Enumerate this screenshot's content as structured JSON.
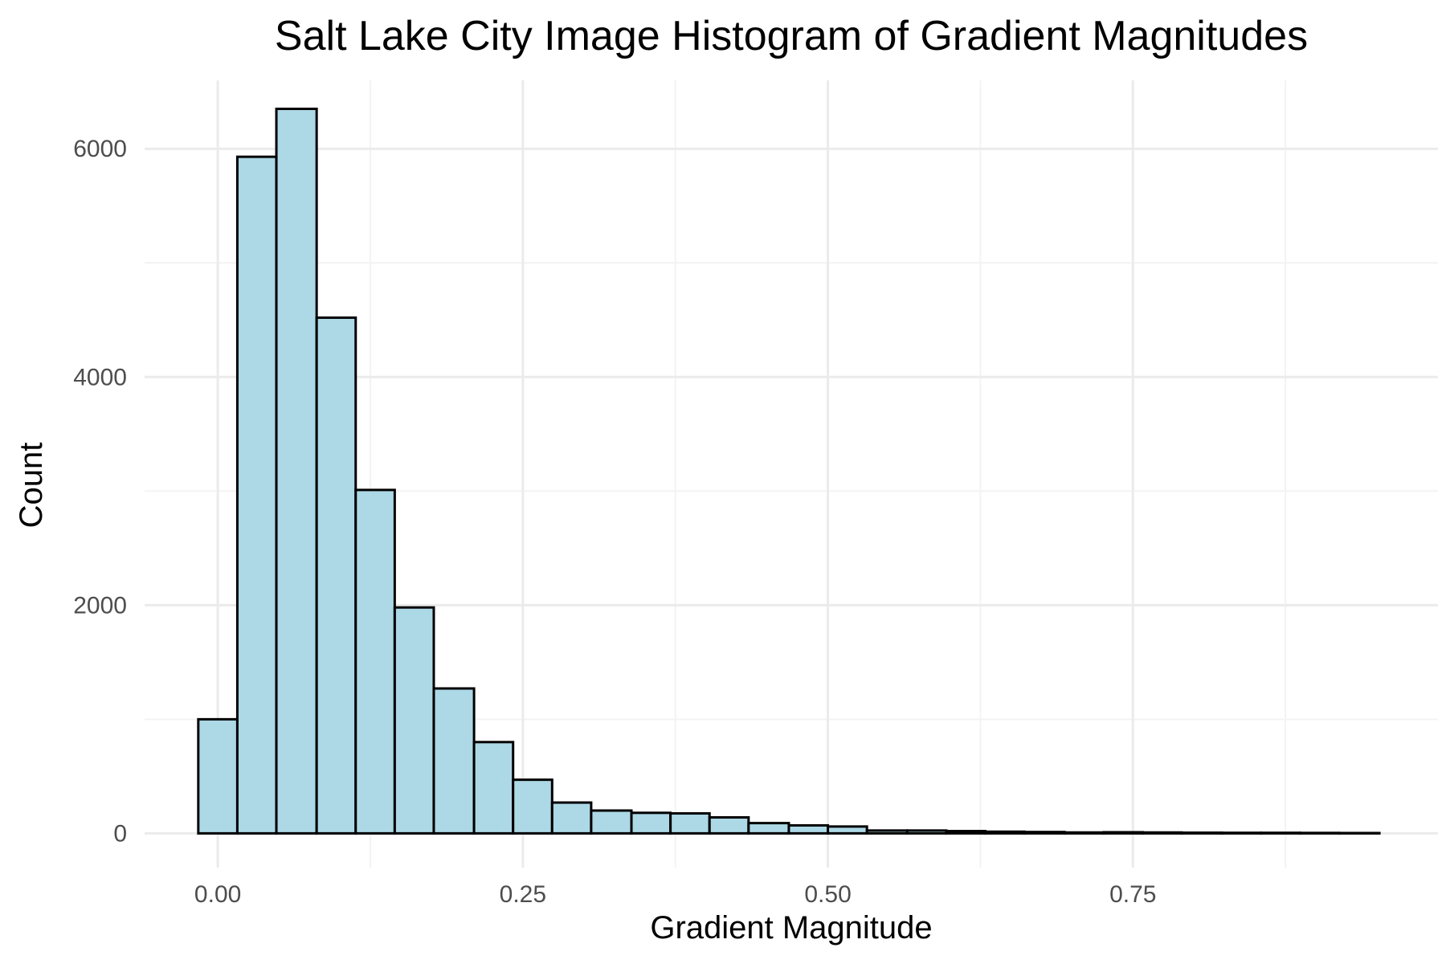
{
  "chart_data": {
    "type": "bar",
    "title": "Salt Lake City Image Histogram of Gradient Magnitudes",
    "xlabel": "Gradient Magnitude",
    "ylabel": "Count",
    "x_ticks": [
      "0.00",
      "0.25",
      "0.50",
      "0.75"
    ],
    "x_tick_values": [
      0,
      0.25,
      0.5,
      0.75
    ],
    "y_ticks": [
      "0",
      "2000",
      "4000",
      "6000"
    ],
    "y_tick_values": [
      0,
      2000,
      4000,
      6000
    ],
    "xlim": [
      -0.06,
      1.0
    ],
    "ylim": [
      -300,
      6600
    ],
    "grid": true,
    "legend": "none",
    "bin_width": 0.032258,
    "bins": [
      {
        "start": -0.016,
        "end": 0.016,
        "value": 1000
      },
      {
        "start": 0.016,
        "end": 0.048,
        "value": 5930
      },
      {
        "start": 0.048,
        "end": 0.081,
        "value": 6350
      },
      {
        "start": 0.081,
        "end": 0.113,
        "value": 4520
      },
      {
        "start": 0.113,
        "end": 0.145,
        "value": 3010
      },
      {
        "start": 0.145,
        "end": 0.177,
        "value": 1980
      },
      {
        "start": 0.177,
        "end": 0.21,
        "value": 1270
      },
      {
        "start": 0.21,
        "end": 0.242,
        "value": 800
      },
      {
        "start": 0.242,
        "end": 0.274,
        "value": 470
      },
      {
        "start": 0.274,
        "end": 0.306,
        "value": 270
      },
      {
        "start": 0.306,
        "end": 0.339,
        "value": 200
      },
      {
        "start": 0.339,
        "end": 0.371,
        "value": 180
      },
      {
        "start": 0.371,
        "end": 0.403,
        "value": 175
      },
      {
        "start": 0.403,
        "end": 0.435,
        "value": 140
      },
      {
        "start": 0.435,
        "end": 0.468,
        "value": 90
      },
      {
        "start": 0.468,
        "end": 0.5,
        "value": 70
      },
      {
        "start": 0.5,
        "end": 0.532,
        "value": 60
      },
      {
        "start": 0.532,
        "end": 0.565,
        "value": 25
      },
      {
        "start": 0.565,
        "end": 0.597,
        "value": 25
      },
      {
        "start": 0.597,
        "end": 0.629,
        "value": 20
      },
      {
        "start": 0.629,
        "end": 0.661,
        "value": 15
      },
      {
        "start": 0.661,
        "end": 0.694,
        "value": 12
      },
      {
        "start": 0.694,
        "end": 0.726,
        "value": 8
      },
      {
        "start": 0.726,
        "end": 0.758,
        "value": 10
      },
      {
        "start": 0.758,
        "end": 0.79,
        "value": 8
      },
      {
        "start": 0.79,
        "end": 0.823,
        "value": 6
      },
      {
        "start": 0.823,
        "end": 0.855,
        "value": 5
      },
      {
        "start": 0.855,
        "end": 0.887,
        "value": 5
      },
      {
        "start": 0.887,
        "end": 0.919,
        "value": 4
      },
      {
        "start": 0.919,
        "end": 0.952,
        "value": 3
      }
    ],
    "colors": {
      "bar_fill": "#add8e6",
      "bar_stroke": "#000000",
      "grid_major": "#ebebeb",
      "grid_minor": "#f3f3f3",
      "tick_text": "#4d4d4d",
      "title_text": "#000000"
    }
  }
}
